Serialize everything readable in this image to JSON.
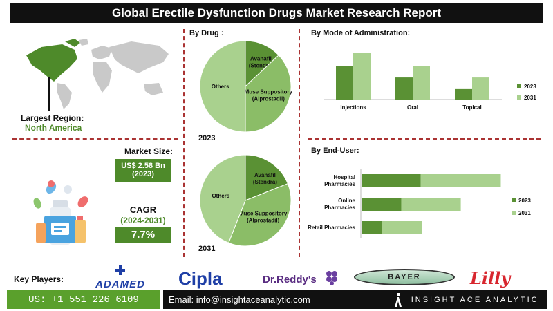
{
  "title": "Global Erectile Dysfunction Drugs Market Research Report",
  "region": {
    "label": "Largest Region:",
    "value": "North America"
  },
  "market_size": {
    "label": "Market Size:",
    "value": "US$ 2.58 Bn",
    "year": "(2023)"
  },
  "cagr": {
    "label": "CAGR",
    "period": "(2024-2031)",
    "value": "7.7%"
  },
  "key_players_label": "Key Players:",
  "players": [
    "ADAMED",
    "Cipla",
    "Dr.Reddy's",
    "BAYER",
    "Lilly"
  ],
  "footer": {
    "phone": "US: +1 551 226 6109",
    "email": "Email: info@insightaceanalytic.com",
    "brand": "INSIGHT ACE ANALYTIC"
  },
  "colors": {
    "dark_green": "#5a9134",
    "light_green": "#a9d18e",
    "mid_green": "#8bbd67",
    "accent_red": "#a33333",
    "brand_green": "#5aa02c"
  },
  "chart_data": [
    {
      "type": "pie",
      "title": "By Drug :",
      "year_label": "2023",
      "slices": [
        {
          "label": "Avanafil (Stendra)",
          "value": 13
        },
        {
          "label": "Muse Suppository (Alprostadil)",
          "value": 37
        },
        {
          "label": "Others",
          "value": 50
        }
      ]
    },
    {
      "type": "pie",
      "year_label": "2031",
      "slices": [
        {
          "label": "Avanafil (Stendra)",
          "value": 19
        },
        {
          "label": "Muse Suppository (Alprostadil)",
          "value": 37
        },
        {
          "label": "Others",
          "value": 44
        }
      ]
    },
    {
      "type": "bar",
      "title": "By  Mode of Administration:",
      "categories": [
        "Injections",
        "Oral",
        "Topical"
      ],
      "series": [
        {
          "name": "2023",
          "values": [
            58,
            38,
            18
          ]
        },
        {
          "name": "2031",
          "values": [
            80,
            58,
            38
          ]
        }
      ],
      "ylim": [
        0,
        100
      ],
      "grid": false,
      "legend": "right"
    },
    {
      "type": "bar",
      "orientation": "horizontal",
      "title": "By End-User:",
      "categories": [
        "Hospital Pharmacies",
        "Online Pharmacies",
        "Retail Pharmacies"
      ],
      "series": [
        {
          "name": "2023",
          "values": [
            60,
            40,
            20
          ]
        },
        {
          "name": "2031",
          "values": [
            82,
            61,
            41
          ]
        }
      ],
      "xlim": [
        0,
        170
      ],
      "grid": false,
      "legend": "right"
    }
  ]
}
